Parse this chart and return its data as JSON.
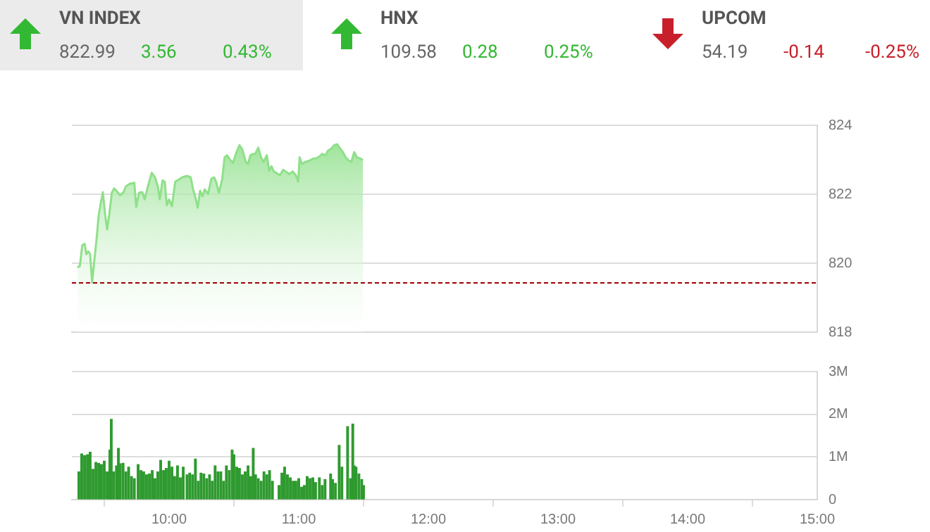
{
  "chart_data": [
    {
      "type": "other",
      "annotations": [
        "VN INDEX",
        "822.99",
        "3.56",
        "0.43%",
        "HNX",
        "109.58",
        "0.28",
        "0.25%",
        "UPCOM",
        "54.19",
        "-0.14",
        "-0.25%"
      ],
      "colors": [
        "#33b833",
        "#33b833",
        "#c8202a"
      ]
    },
    {
      "type": "area",
      "tick_labels": "y",
      "grid": "y",
      "xlim": [
        9.25,
        15
      ],
      "ylim": [
        818,
        824
      ],
      "yticks": [
        818,
        820,
        822,
        824
      ],
      "ref_lines": [
        {
          "axis": "y",
          "value": 819.43,
          "color": "#a00000",
          "line_style": "dashed"
        }
      ],
      "series": [
        {
          "color": "#8fe08a",
          "x": [
            9.293,
            9.312,
            9.33,
            9.348,
            9.362,
            9.377,
            9.391,
            9.406,
            9.424,
            9.442,
            9.457,
            9.475,
            9.489,
            9.507,
            9.522,
            9.54,
            9.558,
            9.576,
            9.594,
            9.623,
            9.649,
            9.667,
            9.696,
            9.732,
            9.746,
            9.768,
            9.793,
            9.812,
            9.837,
            9.866,
            9.891,
            9.913,
            9.928,
            9.949,
            9.967,
            9.982,
            10.0,
            10.022,
            10.047,
            10.072,
            10.101,
            10.138,
            10.167,
            10.185,
            10.203,
            10.221,
            10.239,
            10.257,
            10.275,
            10.301,
            10.326,
            10.348,
            10.366,
            10.384,
            10.409,
            10.428,
            10.446,
            10.471,
            10.493,
            10.518,
            10.543,
            10.565,
            10.591,
            10.609,
            10.627,
            10.645,
            10.663,
            10.688,
            10.71,
            10.728,
            10.754,
            10.772,
            10.79,
            10.808,
            10.826,
            10.855,
            10.88,
            10.899,
            10.928,
            10.953,
            10.978,
            10.996,
            11.007,
            11.025,
            11.051,
            11.08,
            11.109,
            11.134,
            11.159,
            11.181,
            11.207,
            11.225,
            11.254,
            11.272,
            11.297,
            11.315,
            11.341,
            11.362,
            11.388,
            11.406,
            11.428,
            11.449,
            11.478,
            11.496
          ],
          "values": [
            819.88,
            819.92,
            820.52,
            820.56,
            820.26,
            820.34,
            820.26,
            819.44,
            820.11,
            820.75,
            821.4,
            821.78,
            822.06,
            821.4,
            820.98,
            821.46,
            822.04,
            822.17,
            822.1,
            821.97,
            822.06,
            822.23,
            822.3,
            822.33,
            821.63,
            822.04,
            822.06,
            821.85,
            822.23,
            822.62,
            822.49,
            822.23,
            821.85,
            822.4,
            822.36,
            821.68,
            821.85,
            821.65,
            822.36,
            822.42,
            822.49,
            822.53,
            822.49,
            822.14,
            821.91,
            821.61,
            822.1,
            821.94,
            822.14,
            822.01,
            822.45,
            822.49,
            822.32,
            822.04,
            822.42,
            823.07,
            823.13,
            823.0,
            822.91,
            823.2,
            823.42,
            823.3,
            822.94,
            822.88,
            823.13,
            823.17,
            823.16,
            823.35,
            823.07,
            822.94,
            823.13,
            822.68,
            822.81,
            822.66,
            822.62,
            822.55,
            822.71,
            822.66,
            822.58,
            822.66,
            822.55,
            822.36,
            823.07,
            822.88,
            822.94,
            822.97,
            823.03,
            823.04,
            823.09,
            823.17,
            823.13,
            823.26,
            823.33,
            823.42,
            823.45,
            823.35,
            823.22,
            823.07,
            822.97,
            822.94,
            823.22,
            823.07,
            823.03,
            822.99
          ]
        }
      ]
    },
    {
      "type": "bar",
      "grid": "y",
      "xlim": [
        9.25,
        15
      ],
      "xticks": [
        {
          "value": 10,
          "label": "10:00"
        },
        {
          "value": 11,
          "label": "11:00"
        },
        {
          "value": 12,
          "label": "12:00"
        },
        {
          "value": 13,
          "label": "13:00"
        },
        {
          "value": 14,
          "label": "14:00"
        },
        {
          "value": 15,
          "label": "15:00"
        }
      ],
      "ylim": [
        0,
        3
      ],
      "yticks": [
        0,
        {
          "value": 1,
          "label": "1M"
        },
        {
          "value": 2,
          "label": "2M"
        },
        {
          "value": 3,
          "label": "3M"
        }
      ],
      "series": [
        {
          "color": "#2f9a2f",
          "x": [
            9.304,
            9.326,
            9.348,
            9.37,
            9.391,
            9.413,
            9.435,
            9.457,
            9.478,
            9.5,
            9.522,
            9.543,
            9.554,
            9.572,
            9.594,
            9.609,
            9.623,
            9.645,
            9.667,
            9.688,
            9.71,
            9.732,
            9.761,
            9.783,
            9.804,
            9.826,
            9.848,
            9.87,
            9.891,
            9.913,
            9.935,
            9.957,
            9.978,
            10.0,
            10.022,
            10.043,
            10.065,
            10.087,
            10.109,
            10.138,
            10.159,
            10.181,
            10.203,
            10.225,
            10.246,
            10.268,
            10.29,
            10.312,
            10.333,
            10.355,
            10.377,
            10.399,
            10.42,
            10.442,
            10.464,
            10.486,
            10.5,
            10.522,
            10.543,
            10.565,
            10.587,
            10.609,
            10.63,
            10.649,
            10.667,
            10.688,
            10.71,
            10.732,
            10.754,
            10.775,
            10.797,
            10.848,
            10.87,
            10.891,
            10.913,
            10.935,
            10.957,
            10.978,
            11.0,
            11.022,
            11.043,
            11.065,
            11.087,
            11.109,
            11.13,
            11.159,
            11.181,
            11.203,
            11.246,
            11.261,
            11.283,
            11.312,
            11.333,
            11.377,
            11.399,
            11.417,
            11.428,
            11.442,
            11.464,
            11.486,
            11.5
          ],
          "values": [
            0.65,
            1.07,
            1.03,
            1.05,
            1.11,
            0.71,
            0.87,
            0.85,
            0.82,
            0.9,
            0.65,
            1.16,
            1.88,
            0.65,
            0.79,
            1.2,
            0.84,
            0.85,
            0.65,
            0.76,
            0.54,
            0.49,
            0.82,
            0.68,
            0.65,
            0.58,
            0.6,
            0.68,
            0.49,
            0.65,
            0.92,
            0.68,
            0.73,
            0.9,
            0.76,
            0.54,
            0.79,
            0.51,
            0.76,
            0.58,
            0.62,
            0.58,
            0.95,
            0.43,
            0.62,
            0.6,
            0.49,
            0.58,
            0.43,
            0.79,
            0.65,
            0.65,
            0.43,
            0.79,
            0.68,
            1.16,
            1.05,
            0.76,
            0.73,
            0.58,
            0.65,
            0.79,
            0.54,
            1.2,
            0.58,
            0.49,
            0.43,
            0.65,
            0.58,
            0.68,
            0.43,
            0.33,
            0.62,
            0.76,
            0.58,
            0.51,
            0.43,
            0.43,
            0.49,
            0.29,
            0.33,
            0.54,
            0.49,
            0.51,
            0.4,
            0.51,
            0.33,
            0.47,
            0.6,
            0.47,
            0.38,
            1.27,
            0.76,
            1.71,
            0.49,
            1.77,
            0.79,
            0.76,
            0.6,
            0.47,
            0.33
          ]
        }
      ]
    }
  ]
}
